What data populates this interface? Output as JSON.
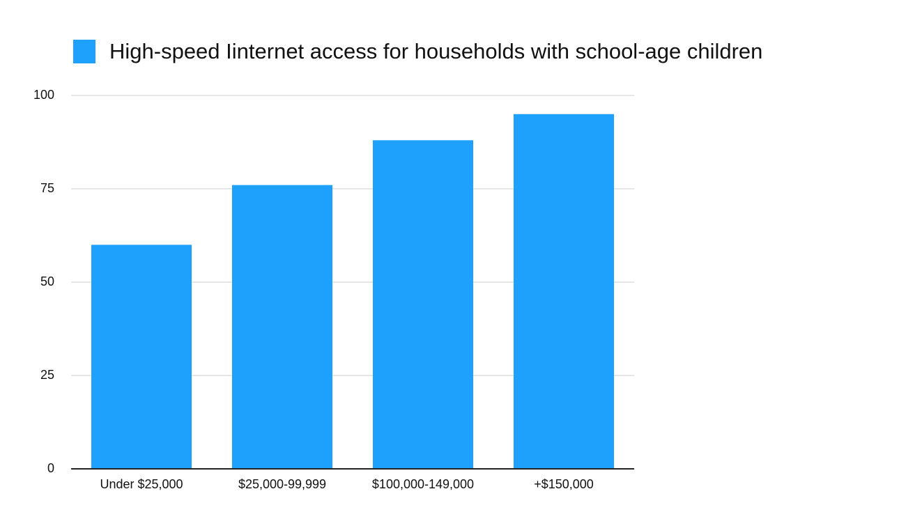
{
  "chart_data": {
    "type": "bar",
    "categories": [
      "Under $25,000",
      "$25,000-99,999",
      "$100,000-149,000",
      "+$150,000"
    ],
    "series": [
      {
        "name": "High-speed Iinternet access for households with school-age children",
        "color": "#1da1fc",
        "values": [
          60,
          76,
          88,
          95
        ]
      }
    ],
    "ylim": [
      0,
      100
    ],
    "yticks": [
      0,
      25,
      50,
      75,
      100
    ],
    "grid": true,
    "legend": "top"
  }
}
